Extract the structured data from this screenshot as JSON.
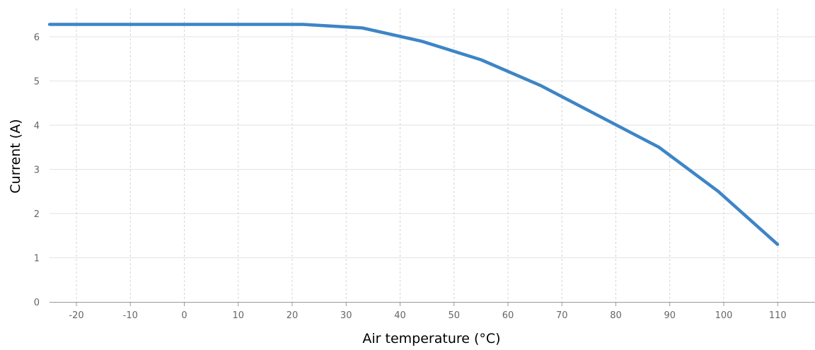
{
  "chart_data": {
    "type": "line",
    "title": "",
    "xlabel": "Air temperature (°C)",
    "ylabel": "Current (A)",
    "xlim": [
      -25,
      115
    ],
    "ylim": [
      0,
      6.4
    ],
    "x_ticks": [
      -20,
      -10,
      0,
      10,
      20,
      30,
      40,
      50,
      60,
      70,
      80,
      90,
      100,
      110
    ],
    "y_ticks": [
      0,
      1,
      2,
      3,
      4,
      5,
      6
    ],
    "grid": {
      "horizontal": true,
      "vertical": "dashed"
    },
    "legend": "none",
    "series": [
      {
        "color": "#3d85c6",
        "x": [
          -25,
          22,
          33,
          44,
          55,
          66,
          77,
          88,
          99,
          110
        ],
        "y": [
          6.28,
          6.28,
          6.2,
          5.9,
          5.48,
          4.9,
          4.2,
          3.5,
          2.5,
          1.3
        ]
      }
    ]
  }
}
